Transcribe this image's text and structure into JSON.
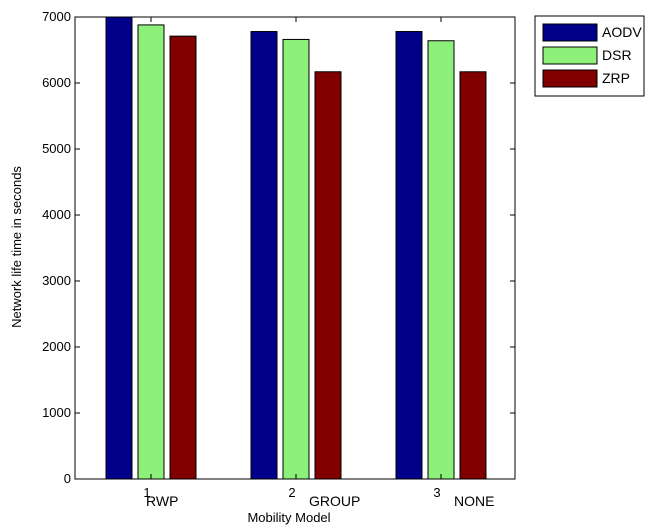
{
  "chart_data": {
    "type": "bar",
    "title": "",
    "xlabel": "Mobility Model",
    "ylabel": "Network life time in seconds",
    "ylim": [
      0,
      7000
    ],
    "yticks": [
      0,
      1000,
      2000,
      3000,
      4000,
      5000,
      6000,
      7000
    ],
    "xticks": [
      "1",
      "2",
      "3"
    ],
    "category_labels": [
      "RWP",
      "GROUP",
      "NONE"
    ],
    "series": [
      {
        "name": "AODV",
        "color": "#00008b",
        "values": [
          7000,
          6780,
          6780
        ]
      },
      {
        "name": "DSR",
        "color": "#8cf07a",
        "values": [
          6880,
          6660,
          6640
        ]
      },
      {
        "name": "ZRP",
        "color": "#800000",
        "values": [
          6710,
          6170,
          6170
        ]
      }
    ],
    "grid": false,
    "legend": "top-right outside plot"
  }
}
